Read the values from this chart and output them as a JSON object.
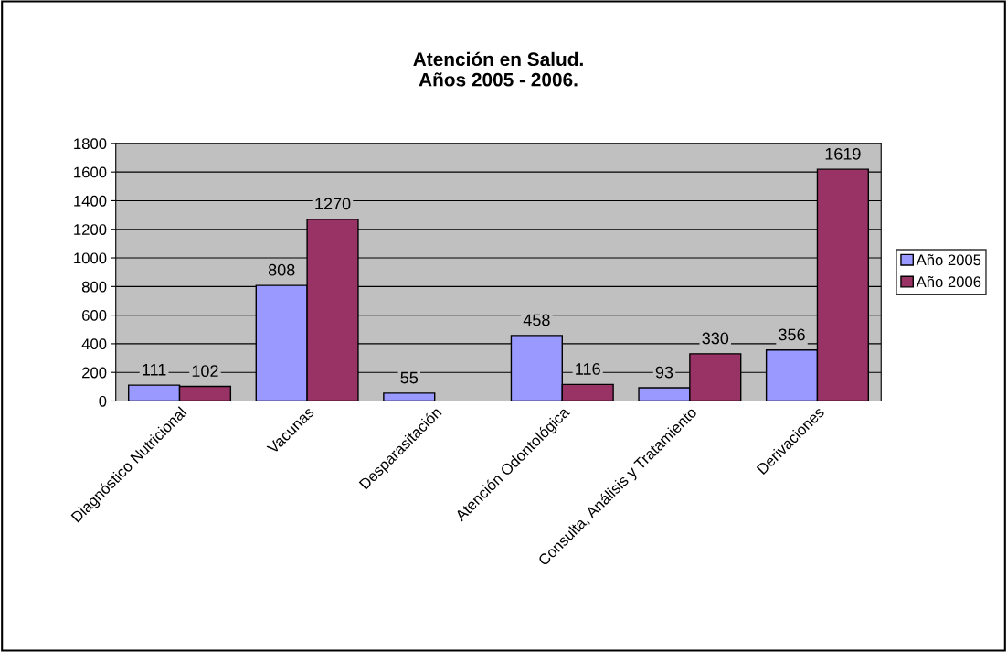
{
  "chart_data": {
    "type": "bar",
    "title": "Atención en Salud.\nAños 2005 - 2006.",
    "categories": [
      "Diagnóstico Nutricional",
      "Vacunas",
      "Desparasitación",
      "Atención Odontológica",
      "Consulta, Análisis y Tratamiento",
      "Derivaciones"
    ],
    "series": [
      {
        "name": "Año 2005",
        "color": "#9999ff",
        "values": [
          111,
          808,
          55,
          458,
          93,
          356
        ]
      },
      {
        "name": "Año 2006",
        "color": "#993366",
        "values": [
          102,
          1270,
          null,
          116,
          330,
          1619
        ]
      }
    ],
    "ylim": [
      0,
      1800
    ],
    "yticks": [
      0,
      200,
      400,
      600,
      800,
      1000,
      1200,
      1400,
      1600,
      1800
    ],
    "grid": "y",
    "legend": "right",
    "data_labels": true
  }
}
